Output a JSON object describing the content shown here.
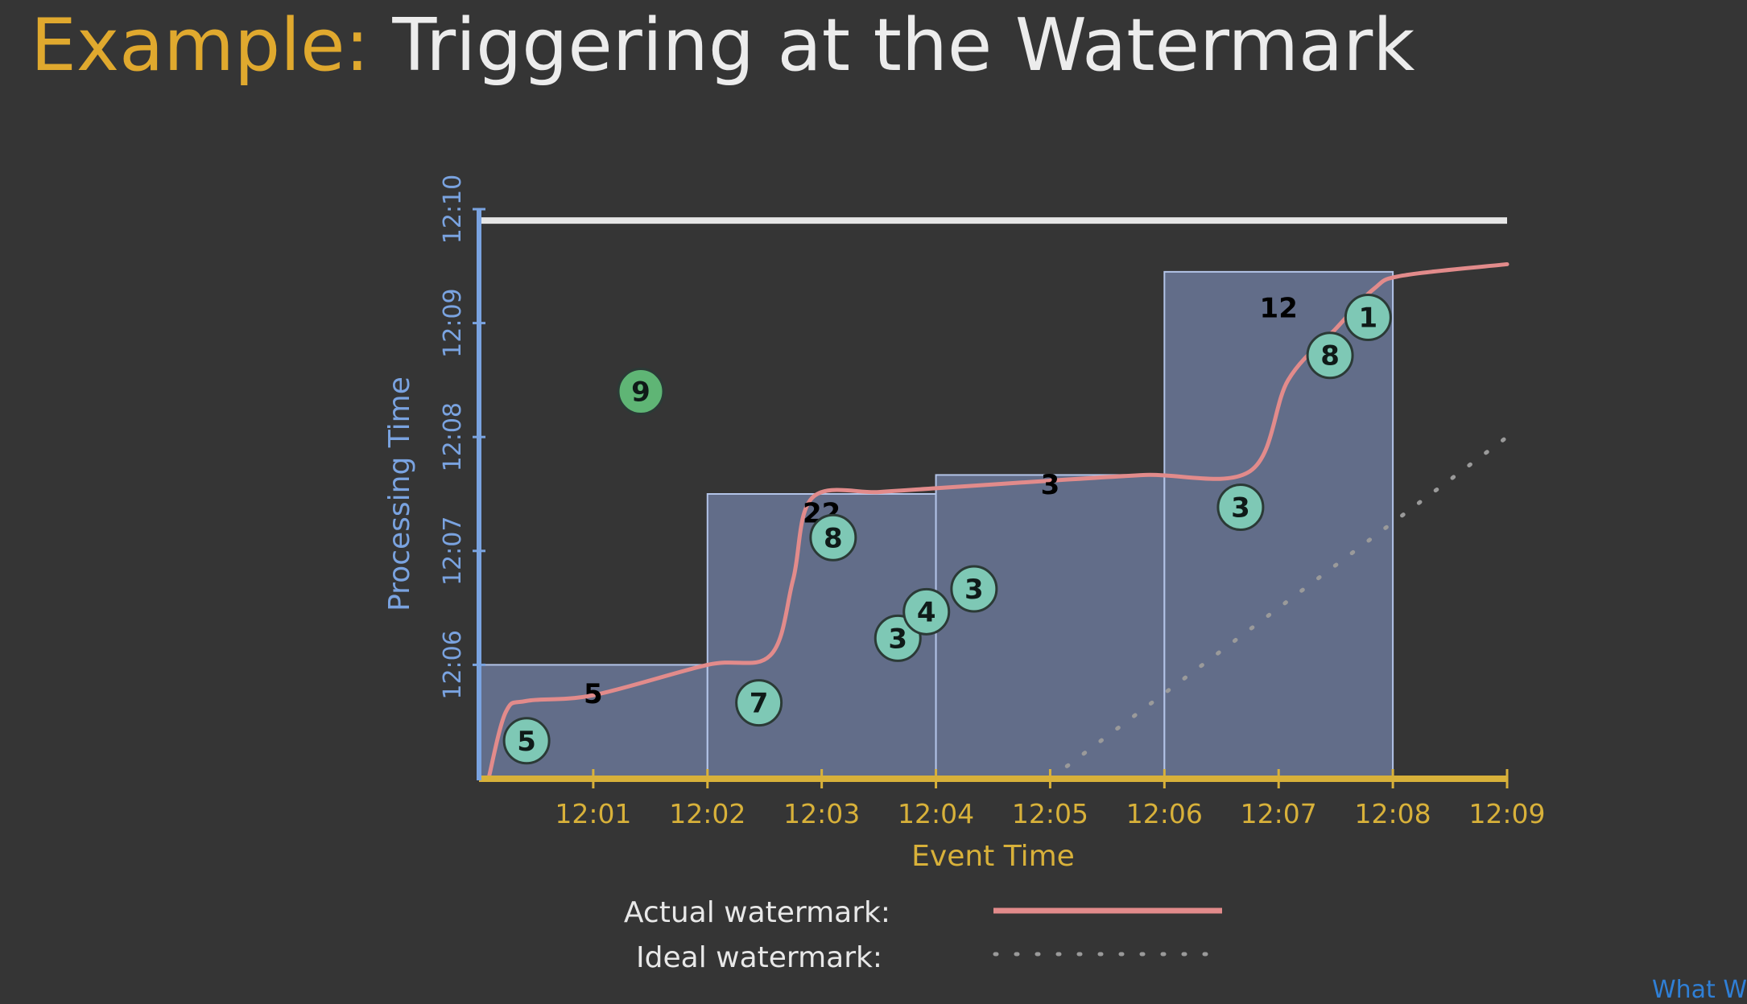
{
  "slide": {
    "title_prefix": "Example:",
    "title_main": " Triggering at the Watermark",
    "corner_text": "What W"
  },
  "colors": {
    "background": "#353535",
    "title_accent": "#e0a92e",
    "title_main": "#ececec",
    "processing_axis": "#7aa3e0",
    "event_axis": "#d8b13a",
    "pane_fill": "#6f7ea1",
    "pane_stroke": "#b3c4e8",
    "actual_watermark": "#e28b8b",
    "ideal_watermark": "#9a9a9a",
    "point_fill": "#7ec8b5",
    "late_point_fill": "#5fb575",
    "fired_line": "#e6e6e6"
  },
  "chart_data": {
    "type": "scatter",
    "xlabel": "Event Time",
    "ylabel": "Processing Time",
    "x_ticks": [
      "12:01",
      "12:02",
      "12:03",
      "12:04",
      "12:05",
      "12:06",
      "12:07",
      "12:08",
      "12:09"
    ],
    "y_ticks": [
      "12:06",
      "12:07",
      "12:08",
      "12:09",
      "12:10"
    ],
    "xlim": [
      "12:00",
      "12:09"
    ],
    "ylim": [
      "12:05",
      "12:10"
    ],
    "points": [
      {
        "x": "12:00:25",
        "y": "12:05:20",
        "value": 5,
        "late": false
      },
      {
        "x": "12:01:25",
        "y": "12:08:24",
        "value": 9,
        "late": true
      },
      {
        "x": "12:02:27",
        "y": "12:05:40",
        "value": 7,
        "late": false
      },
      {
        "x": "12:03:06",
        "y": "12:07:07",
        "value": 8,
        "late": false
      },
      {
        "x": "12:03:40",
        "y": "12:06:14",
        "value": 3,
        "late": false
      },
      {
        "x": "12:03:55",
        "y": "12:06:28",
        "value": 4,
        "late": false
      },
      {
        "x": "12:04:20",
        "y": "12:06:40",
        "value": 3,
        "late": false
      },
      {
        "x": "12:06:40",
        "y": "12:07:23",
        "value": 3,
        "late": false
      },
      {
        "x": "12:07:27",
        "y": "12:08:43",
        "value": 8,
        "late": false
      },
      {
        "x": "12:07:47",
        "y": "12:09:03",
        "value": 1,
        "late": false
      }
    ],
    "panes": [
      {
        "start": "12:00",
        "end": "12:02",
        "fired_at": "12:06:00",
        "sum": 5
      },
      {
        "start": "12:02",
        "end": "12:04",
        "fired_at": "12:07:30",
        "sum": 22
      },
      {
        "start": "12:04",
        "end": "12:06",
        "fired_at": "12:07:40",
        "sum": 3
      },
      {
        "start": "12:06",
        "end": "12:08",
        "fired_at": "12:09:27",
        "sum": 12
      }
    ],
    "processing_time_now": "12:09:54",
    "actual_watermark": [
      [
        "12:00:05",
        "12:05:00"
      ],
      [
        "12:00:14",
        "12:05:35"
      ],
      [
        "12:00:25",
        "12:05:41"
      ],
      [
        "12:01:00",
        "12:05:44"
      ],
      [
        "12:02:00",
        "12:06:00"
      ],
      [
        "12:02:33",
        "12:06:05"
      ],
      [
        "12:02:45",
        "12:06:45"
      ],
      [
        "12:02:55",
        "12:07:28"
      ],
      [
        "12:03:30",
        "12:07:31"
      ],
      [
        "12:04:00",
        "12:07:33"
      ],
      [
        "12:05:00",
        "12:07:37"
      ],
      [
        "12:05:50",
        "12:07:40"
      ],
      [
        "12:06:45",
        "12:07:42"
      ],
      [
        "12:07:05",
        "12:08:30"
      ],
      [
        "12:07:30",
        "12:08:57"
      ],
      [
        "12:07:50",
        "12:09:18"
      ],
      [
        "12:08:05",
        "12:09:25"
      ],
      [
        "12:09:00",
        "12:09:31"
      ]
    ],
    "ideal_watermark": [
      [
        "12:05:00",
        "12:05:00"
      ],
      [
        "12:09:00",
        "12:08:00"
      ]
    ],
    "legend": [
      {
        "label": "Actual watermark:",
        "style": "solid"
      },
      {
        "label": "Ideal watermark:",
        "style": "dotted"
      }
    ],
    "grid": false,
    "legend_position": "bottom-center"
  }
}
